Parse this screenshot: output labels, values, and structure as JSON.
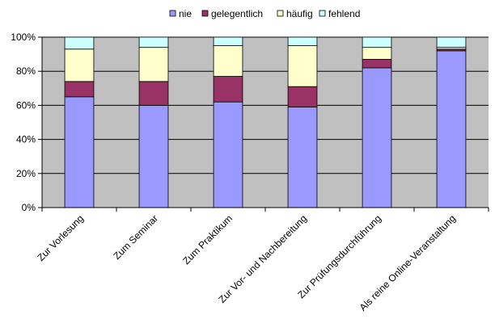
{
  "chart_data": {
    "type": "bar",
    "stacked": true,
    "percent_stacked": true,
    "categories": [
      "Zur Vorlesung",
      "Zum Seminar",
      "Zum Praktikum",
      "Zur Vor- und Nachbereitung",
      "Zur Prüfungsdurchführung",
      "Als reine Online-Veranstaltung"
    ],
    "series": [
      {
        "name": "nie",
        "color": "#9999ff",
        "values": [
          65,
          60,
          62,
          59,
          82,
          92
        ]
      },
      {
        "name": "gelegentlich",
        "color": "#993366",
        "values": [
          9,
          14,
          15,
          12,
          5,
          1
        ]
      },
      {
        "name": "häufig",
        "color": "#ffffcc",
        "values": [
          19,
          20,
          18,
          24,
          7,
          1
        ]
      },
      {
        "name": "fehlend",
        "color": "#ccffff",
        "values": [
          7,
          6,
          5,
          5,
          6,
          6
        ]
      }
    ],
    "ylim": [
      0,
      100
    ],
    "yticks": [
      "0%",
      "20%",
      "40%",
      "60%",
      "80%",
      "100%"
    ],
    "ytick_values": [
      0,
      20,
      40,
      60,
      80,
      100
    ],
    "grid": true,
    "plot_background": "#c0c0c0",
    "legend_position": "top",
    "title": "",
    "xlabel": "",
    "ylabel": ""
  }
}
